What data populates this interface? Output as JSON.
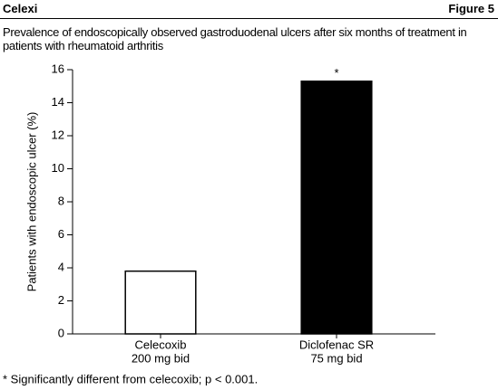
{
  "header": {
    "left": "Celexi",
    "right": "Figure 5"
  },
  "chart_data": {
    "type": "bar",
    "title": "Prevalence of endoscopically observed gastroduodenal ulcers after six months of treatment in patients with rheumatoid arthritis",
    "y_label": "Patients with endoscopic ulcer (%)",
    "categories": [
      [
        "Celecoxib",
        "200 mg bid"
      ],
      [
        "Diclofenac SR",
        "75 mg bid"
      ]
    ],
    "values": [
      3.8,
      15.3
    ],
    "colors": [
      "#ffffff",
      "#000000"
    ],
    "bar_annotations": [
      null,
      "*"
    ],
    "ylim": [
      0,
      16
    ],
    "yticks": [
      0,
      2,
      4,
      6,
      8,
      10,
      12,
      14,
      16
    ],
    "grid": false,
    "footnote": "* Significantly different from celecoxib; p < 0.001."
  }
}
